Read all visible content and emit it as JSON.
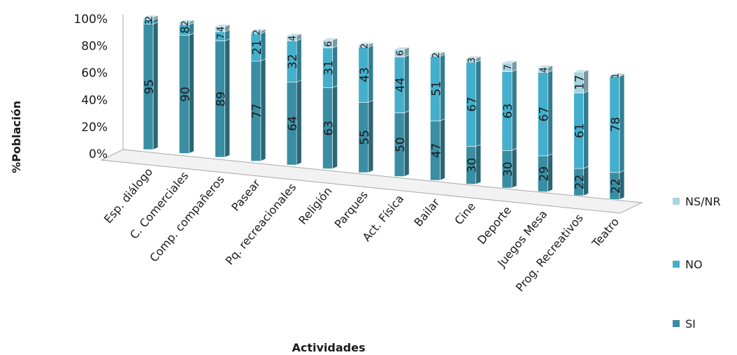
{
  "chart_data": {
    "type": "bar",
    "stacked": "percent",
    "rendering": "3d-columns",
    "xlabel": "Actividades",
    "ylabel": "%Población",
    "ylim": [
      0,
      100
    ],
    "y_ticks": [
      "0%",
      "20%",
      "40%",
      "60%",
      "80%",
      "100%"
    ],
    "categories": [
      "Esp. diálogo",
      "C. Comerciales",
      "Comp. compañeros",
      "Pasear",
      "Pq. recreacionales",
      "Religión",
      "Parques",
      "Act. Física",
      "Bailar",
      "Cine",
      "Deporte",
      "Juegos Mesa",
      "Prog. Recreativos",
      "Teatro"
    ],
    "series": [
      {
        "name": "SI",
        "values": [
          95,
          90,
          89,
          77,
          64,
          63,
          55,
          50,
          47,
          30,
          30,
          29,
          22,
          22
        ]
      },
      {
        "name": "NO",
        "values": [
          3,
          8,
          7,
          21,
          32,
          31,
          43,
          44,
          51,
          67,
          63,
          67,
          61,
          78
        ]
      },
      {
        "name": "NS/NR",
        "values": [
          2,
          2,
          4,
          2,
          4,
          6,
          2,
          6,
          2,
          3,
          7,
          4,
          17,
          1
        ]
      }
    ],
    "series_order_in_legend": [
      "NS/NR",
      "NO",
      "SI"
    ],
    "legend_position": "right",
    "grid": false,
    "colors": {
      "SI": "#3a8ea3",
      "NO": "#44afcc",
      "NS/NR": "#a8d4e0",
      "axis": "#a8a8a8",
      "text": "#1a1a1a"
    }
  }
}
